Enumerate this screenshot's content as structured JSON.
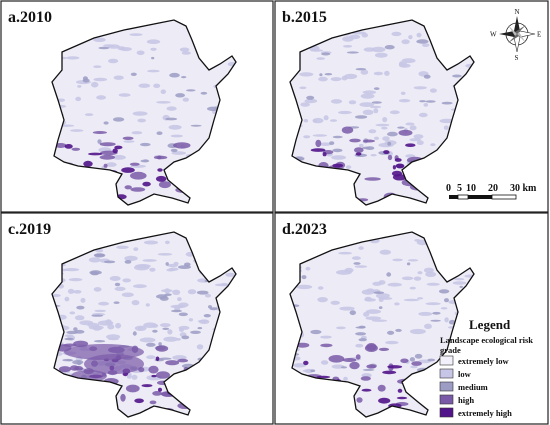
{
  "panels": [
    {
      "id": "a",
      "title": "a.2010"
    },
    {
      "id": "b",
      "title": "b.2015"
    },
    {
      "id": "c",
      "title": "c.2019"
    },
    {
      "id": "d",
      "title": "d.2023"
    }
  ],
  "compass": {
    "n": "N",
    "s": "S",
    "e": "E",
    "w": "W"
  },
  "scale_bar": {
    "ticks": [
      "0",
      "5",
      "10",
      "20",
      "30 km"
    ]
  },
  "legend": {
    "title": "Legend",
    "subtitle_line1": "Landscape ecological risk",
    "subtitle_line2": "grade",
    "items": [
      {
        "label": "extremely low",
        "color": "#f2f0fa"
      },
      {
        "label": "low",
        "color": "#c8c6e6"
      },
      {
        "label": "medium",
        "color": "#9c9cc4"
      },
      {
        "label": "high",
        "color": "#7a5aa8"
      },
      {
        "label": "extremely high",
        "color": "#52148a"
      }
    ]
  },
  "colors": {
    "base": "#ecebf6",
    "outline": "#111111",
    "low": "#c8c6e6",
    "medium": "#9c9cc4",
    "high": "#7a5aa8",
    "extreme": "#52148a"
  }
}
